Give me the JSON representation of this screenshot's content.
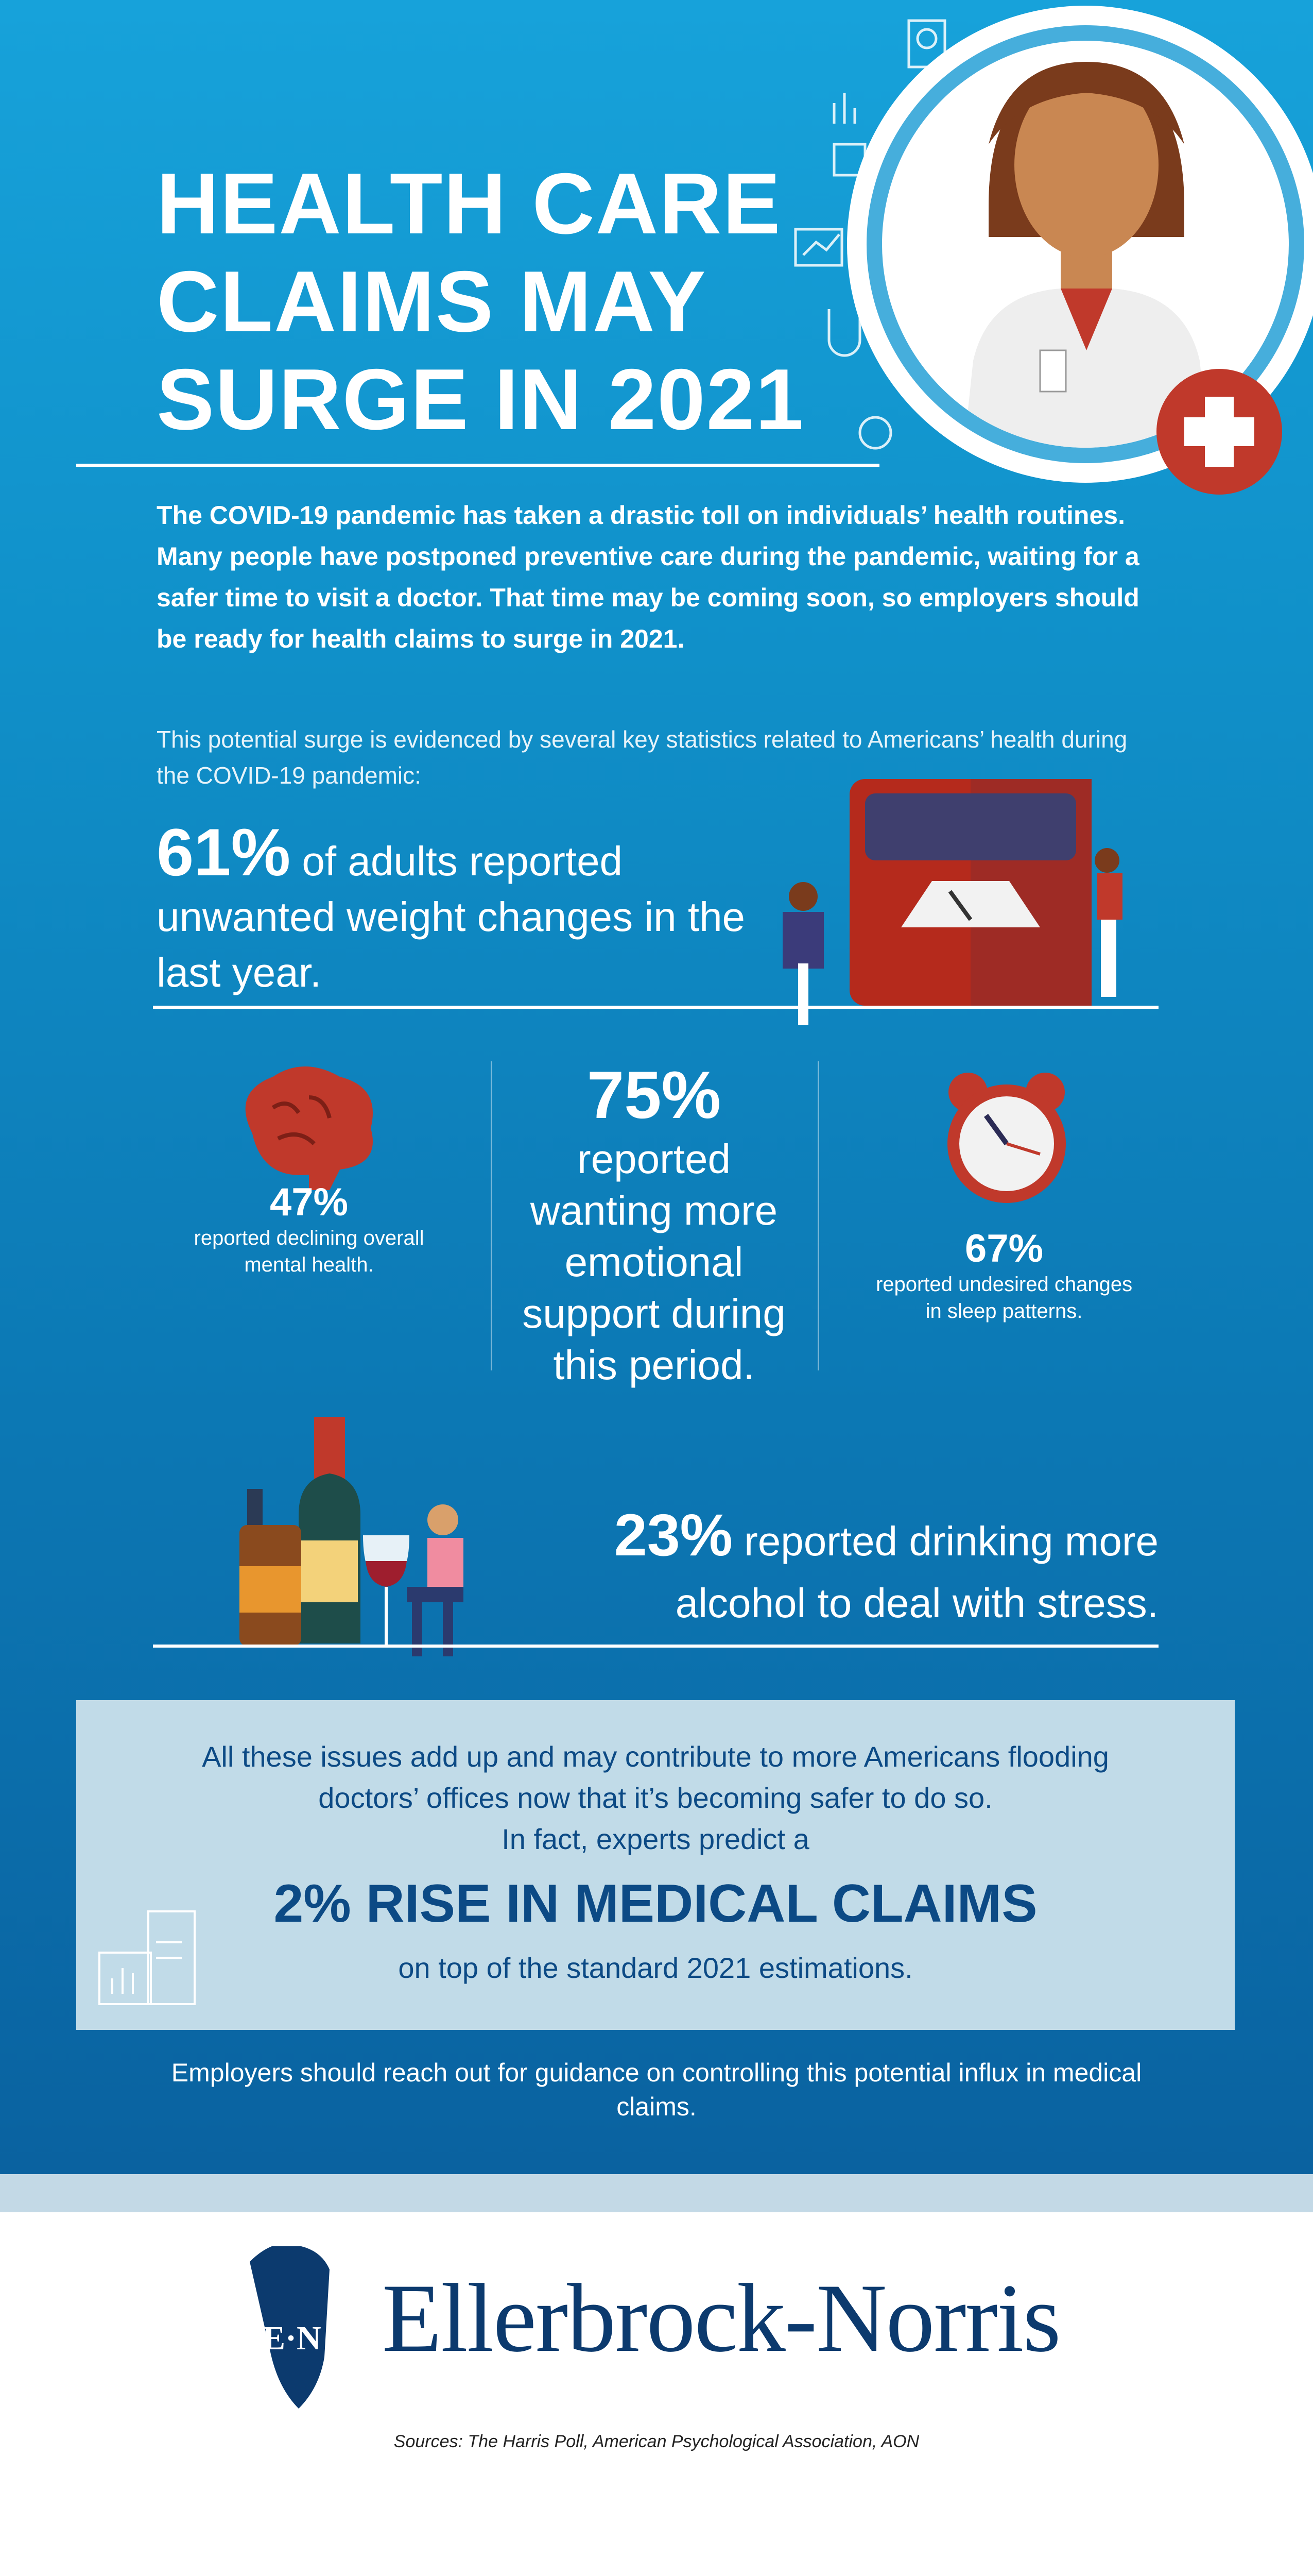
{
  "title": {
    "line1": "HEALTH CARE",
    "line2": "CLAIMS MAY",
    "line3": "SURGE IN 2021"
  },
  "intro": {
    "bold": "The COVID-19 pandemic has taken a drastic toll on individuals’ health routines. Many people have postponed preventive care during the pandemic, waiting for a safer time to visit a doctor. That time may be coming soon, so employers should be ready for health claims to surge in 2021.",
    "light": "This potential surge is evidenced by several key statistics related to Americans’ health during the COVID-19 pandemic:"
  },
  "stats": {
    "weight": {
      "pct": "61%",
      "text": " of adults reported unwanted weight changes in the last year."
    },
    "mental": {
      "pct": "47%",
      "text": "reported declining overall mental health."
    },
    "emotional": {
      "pct": "75%",
      "text": "reported wanting more emotional support during this period."
    },
    "sleep": {
      "pct": "67%",
      "text": "reported undesired changes in sleep patterns."
    },
    "alcohol": {
      "pct": "23%",
      "text1": " reported drinking more",
      "text2": "alcohol to deal with stress."
    }
  },
  "callout": {
    "line1": "All these issues add up and may contribute to more Americans flooding",
    "line2": "doctors’ offices now that it’s becoming safer to do so.",
    "line3": "In fact, experts predict a",
    "headline": "2% RISE IN MEDICAL CLAIMS",
    "line4": "on top of the standard 2021 estimations."
  },
  "closing": "Employers should reach out for guidance on controlling this potential influx in medical claims.",
  "brand": {
    "name": "Ellerbrock-Norris",
    "monogram": "E·N"
  },
  "sources": "Sources: The Harris Poll, American Psychological Association, AON",
  "colors": {
    "bg_top": "#17a2da",
    "bg_bottom": "#0a62a0",
    "box": "#c1dbe8",
    "navy": "#0c3a6e",
    "red": "#c0392b"
  }
}
